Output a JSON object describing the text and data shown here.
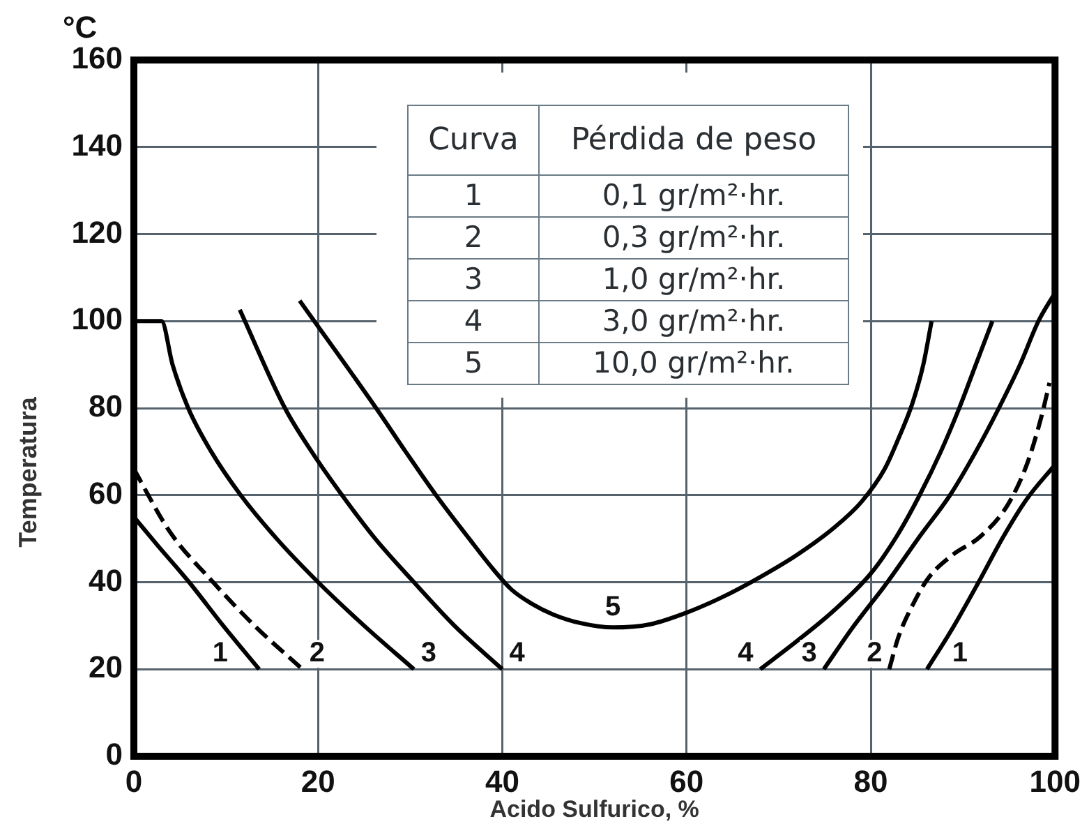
{
  "chart_data": {
    "type": "line",
    "xlabel": "Acido Sulfurico, %",
    "ylabel": "Temperatura",
    "xlim": [
      0,
      100
    ],
    "ylim": [
      0,
      160
    ],
    "xticks": [
      0,
      20,
      40,
      60,
      80,
      100
    ],
    "yticks": [
      0,
      20,
      40,
      60,
      80,
      100,
      120,
      140,
      160
    ],
    "grid": true,
    "marker": "none",
    "line_style": "solid",
    "series": [
      {
        "name": "1",
        "color": "#000000",
        "x": [
          0,
          2.6,
          6,
          9.7,
          13.6,
          null,
          86.1,
          88.9,
          91.7,
          94.4,
          96.9,
          100
        ],
        "values": [
          55,
          48.4,
          40,
          30,
          20,
          null,
          20,
          29.5,
          40,
          50.5,
          59,
          67
        ]
      },
      {
        "name": "2",
        "color": "#000000",
        "line_style": "dashed",
        "x": [
          0,
          3.9,
          8.6,
          13.1,
          18.3,
          null,
          82,
          83,
          84.8,
          86.3,
          88.9,
          91.9,
          94.9,
          97,
          98.5,
          99.4
        ],
        "values": [
          66,
          51.6,
          40,
          30,
          20,
          null,
          20,
          27.4,
          35.8,
          41.1,
          46.3,
          50.5,
          57.9,
          67.4,
          77.9,
          85.8
        ]
      },
      {
        "name": "3",
        "color": "#000000",
        "x": [
          0,
          3,
          4.2,
          5.9,
          8.4,
          11.6,
          15.5,
          20,
          25,
          30.4,
          null,
          74.9,
          78,
          81.8,
          85.3,
          88.6,
          91.4,
          93.9,
          96.2,
          98.2,
          100
        ],
        "values": [
          100,
          100,
          90,
          80,
          70,
          60,
          50,
          40,
          30,
          20,
          null,
          20,
          29.5,
          40,
          50.5,
          60,
          70,
          80,
          90,
          100,
          106.5
        ]
      },
      {
        "name": "4",
        "color": "#000000",
        "x": [
          11.5,
          16.4,
          19.3,
          22.6,
          26.2,
          30.4,
          34.8,
          40,
          null,
          68,
          72,
          76,
          80,
          82.8,
          85.3,
          87.6,
          89.6,
          91.4,
          93.2
        ],
        "values": [
          102.6,
          80,
          70,
          60,
          50,
          40,
          30,
          20,
          null,
          20,
          26.5,
          33.5,
          42,
          50.5,
          60,
          70,
          80,
          90,
          100
        ]
      },
      {
        "name": "5",
        "color": "#000000",
        "x": [
          18,
          26.3,
          29.5,
          32.8,
          36.4,
          39,
          41,
          43,
          45.5,
          48.5,
          52,
          56,
          60,
          64,
          68,
          72,
          76,
          79,
          81.5,
          83,
          84.5,
          85.7,
          86.6
        ],
        "values": [
          104.7,
          80,
          70,
          60,
          50,
          43,
          38.3,
          35.3,
          32.6,
          30.6,
          29.6,
          30.3,
          33,
          36.7,
          41.2,
          46.3,
          52.5,
          58.5,
          66,
          73,
          81,
          90,
          100
        ]
      }
    ],
    "annotations": [
      "°C",
      "Curva",
      "Pérdida de peso",
      "1",
      "0,1 gr/m²·hr.",
      "2",
      "0,3 gr/m²·hr.",
      "3",
      "1,0 gr/m²·hr.",
      "4",
      "3,0 gr/m²·hr.",
      "5",
      "10,0 gr/m²·hr."
    ]
  }
}
